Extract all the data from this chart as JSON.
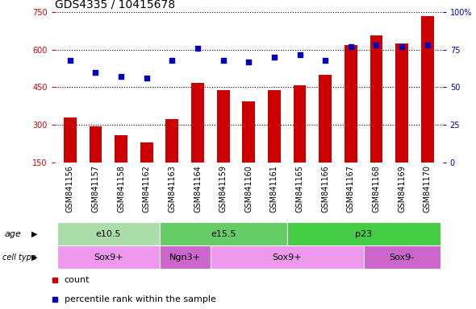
{
  "title": "GDS4335 / 10415678",
  "samples": [
    "GSM841156",
    "GSM841157",
    "GSM841158",
    "GSM841162",
    "GSM841163",
    "GSM841164",
    "GSM841159",
    "GSM841160",
    "GSM841161",
    "GSM841165",
    "GSM841166",
    "GSM841167",
    "GSM841168",
    "GSM841169",
    "GSM841170"
  ],
  "counts": [
    330,
    294,
    258,
    228,
    322,
    468,
    440,
    395,
    440,
    458,
    500,
    620,
    658,
    625,
    735
  ],
  "percentiles": [
    68,
    60,
    57,
    56,
    68,
    76,
    68,
    67,
    70,
    72,
    68,
    77,
    78,
    77,
    78
  ],
  "ylim_left": [
    150,
    750
  ],
  "ylim_right": [
    0,
    100
  ],
  "yticks_left": [
    150,
    300,
    450,
    600,
    750
  ],
  "yticks_right": [
    0,
    25,
    50,
    75,
    100
  ],
  "bar_color": "#cc0000",
  "dot_color": "#0000bb",
  "tick_bg_color": "#c8c8c8",
  "age_groups": [
    {
      "label": "e10.5",
      "start": 0,
      "end": 4,
      "color": "#aaddaa"
    },
    {
      "label": "e15.5",
      "start": 4,
      "end": 9,
      "color": "#66cc66"
    },
    {
      "label": "p23",
      "start": 9,
      "end": 15,
      "color": "#44cc44"
    }
  ],
  "cell_groups": [
    {
      "label": "Sox9+",
      "start": 0,
      "end": 4,
      "color": "#ee99ee"
    },
    {
      "label": "Ngn3+",
      "start": 4,
      "end": 6,
      "color": "#cc66cc"
    },
    {
      "label": "Sox9+",
      "start": 6,
      "end": 12,
      "color": "#ee99ee"
    },
    {
      "label": "Sox9-",
      "start": 12,
      "end": 15,
      "color": "#cc66cc"
    }
  ],
  "title_fontsize": 10,
  "tick_fontsize": 7,
  "annot_fontsize": 8,
  "legend_fontsize": 8
}
